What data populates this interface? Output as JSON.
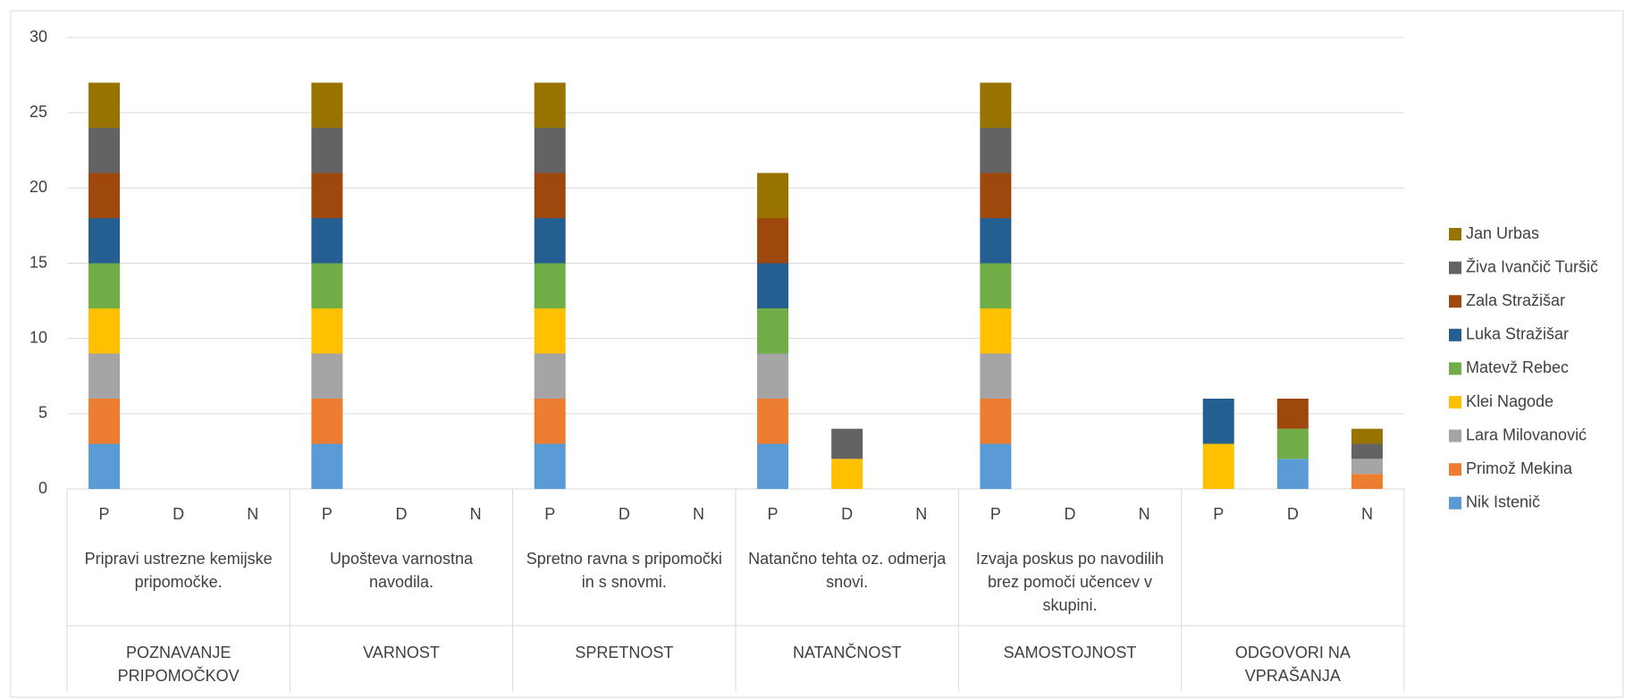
{
  "chart_data": {
    "type": "stacked-bar",
    "categories": [
      "P",
      "D",
      "N",
      "P",
      "D",
      "N",
      "P",
      "D",
      "N",
      "P",
      "D",
      "N",
      "P",
      "D",
      "N",
      "P",
      "D",
      "N"
    ],
    "groups": [
      {
        "sublabel": "Pripravi ustrezne kemijske pripomočke.",
        "label": "POZNAVANJE PRIPOMOČKOV"
      },
      {
        "sublabel": "Upošteva varnostna navodila.",
        "label": "VARNOST"
      },
      {
        "sublabel": "Spretno ravna  s pripomočki in s snovmi.",
        "label": "SPRETNOST"
      },
      {
        "sublabel": "Natančno tehta oz. odmerja snovi.",
        "label": "NATANČNOST"
      },
      {
        "sublabel": "Izvaja poskus po navodilih brez pomoči učencev v skupini.",
        "label": "SAMOSTOJNOST"
      },
      {
        "sublabel": "",
        "label": "ODGOVORI NA VPRAŠANJA"
      }
    ],
    "series": [
      {
        "name": "Nik Istenič",
        "color": "#5b9bd5",
        "values": [
          3,
          0,
          0,
          3,
          0,
          0,
          3,
          0,
          0,
          3,
          0,
          0,
          3,
          0,
          0,
          0,
          2,
          0
        ]
      },
      {
        "name": "Primož Mekina",
        "color": "#ed7d31",
        "values": [
          3,
          0,
          0,
          3,
          0,
          0,
          3,
          0,
          0,
          3,
          0,
          0,
          3,
          0,
          0,
          0,
          0,
          1
        ]
      },
      {
        "name": "Lara Milovanović",
        "color": "#a5a5a5",
        "values": [
          3,
          0,
          0,
          3,
          0,
          0,
          3,
          0,
          0,
          3,
          0,
          0,
          3,
          0,
          0,
          0,
          0,
          1
        ]
      },
      {
        "name": "Klei Nagode",
        "color": "#ffc000",
        "values": [
          3,
          0,
          0,
          3,
          0,
          0,
          3,
          0,
          0,
          0,
          2,
          0,
          3,
          0,
          0,
          3,
          0,
          0
        ]
      },
      {
        "name": "Matevž Rebec",
        "color": "#70ad47",
        "values": [
          3,
          0,
          0,
          3,
          0,
          0,
          3,
          0,
          0,
          3,
          0,
          0,
          3,
          0,
          0,
          0,
          2,
          0
        ]
      },
      {
        "name": "Luka Stražišar",
        "color": "#255e91",
        "values": [
          3,
          0,
          0,
          3,
          0,
          0,
          3,
          0,
          0,
          3,
          0,
          0,
          3,
          0,
          0,
          3,
          0,
          0
        ]
      },
      {
        "name": "Zala Stražišar",
        "color": "#9e480e",
        "values": [
          3,
          0,
          0,
          3,
          0,
          0,
          3,
          0,
          0,
          3,
          0,
          0,
          3,
          0,
          0,
          0,
          2,
          0
        ]
      },
      {
        "name": "Živa Ivančič Turšič",
        "color": "#636363",
        "values": [
          3,
          0,
          0,
          3,
          0,
          0,
          3,
          0,
          0,
          0,
          2,
          0,
          3,
          0,
          0,
          0,
          0,
          1
        ]
      },
      {
        "name": "Jan Urbas",
        "color": "#997300",
        "values": [
          3,
          0,
          0,
          3,
          0,
          0,
          3,
          0,
          0,
          3,
          0,
          0,
          3,
          0,
          0,
          0,
          0,
          1
        ]
      }
    ],
    "ylim": [
      0,
      30
    ],
    "yticks": [
      0,
      5,
      10,
      15,
      20,
      25,
      30
    ],
    "grid": true,
    "legend": "right"
  }
}
